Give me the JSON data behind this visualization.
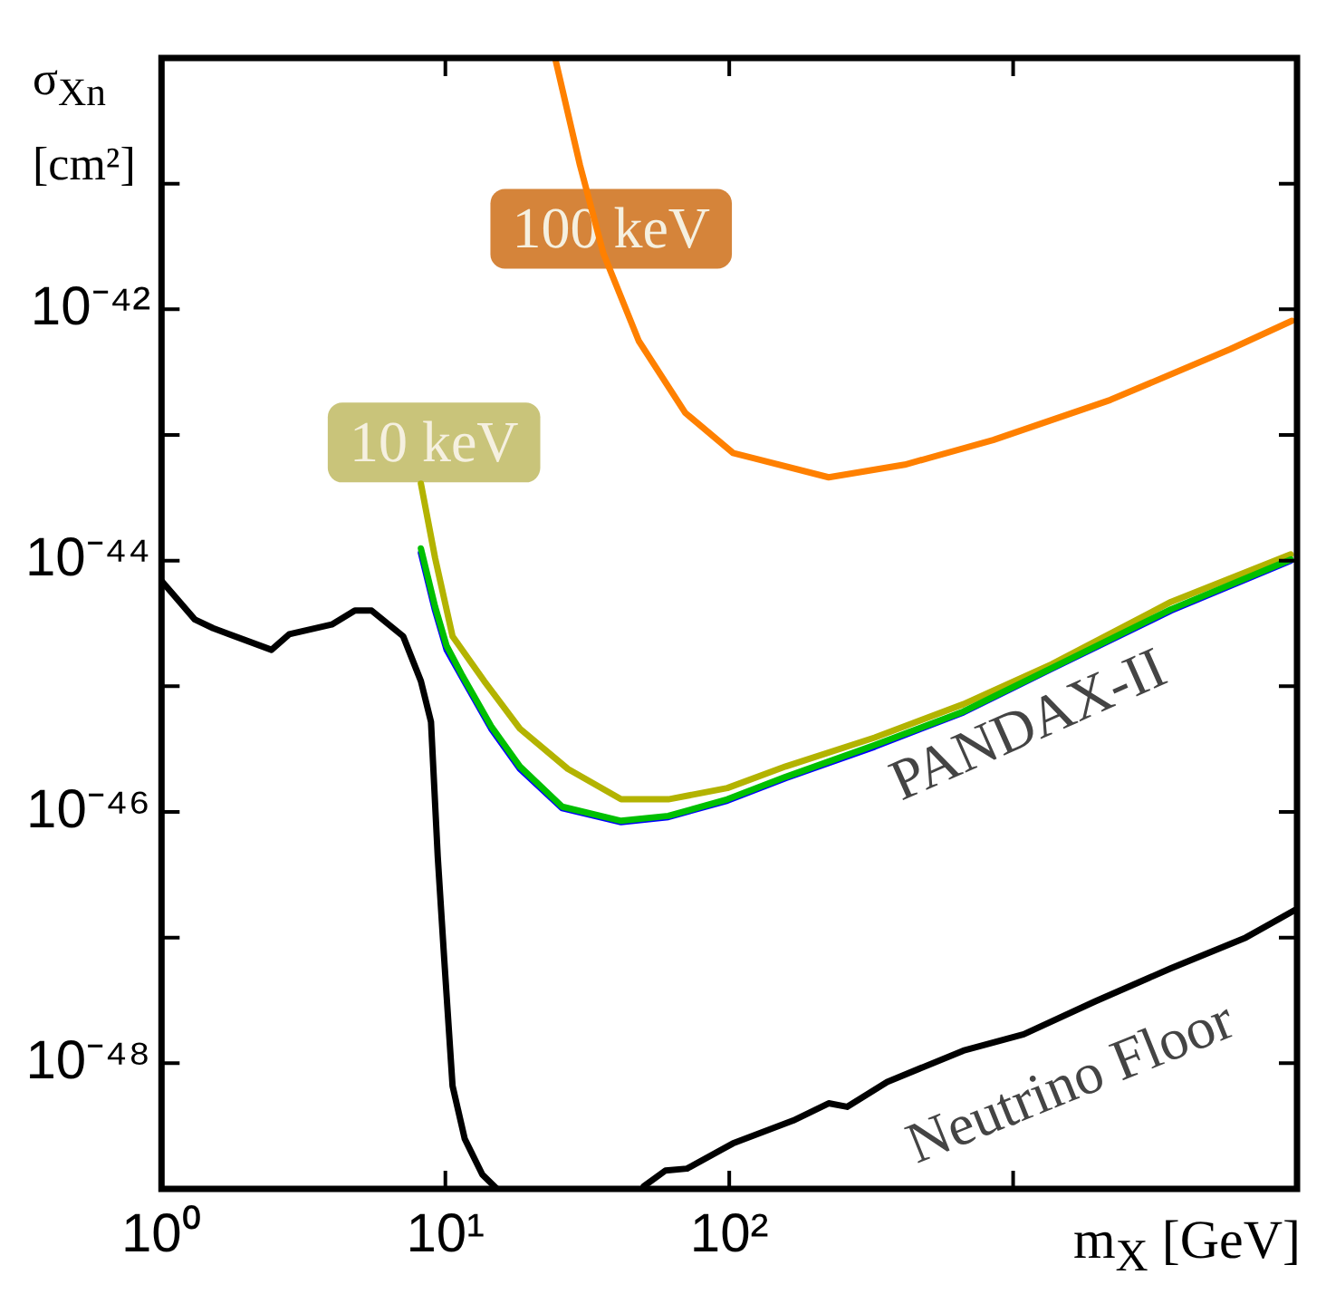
{
  "chart_data": {
    "type": "line",
    "xlabel": "m$_{X}$ [GeV]",
    "ylabel": "σ$_{Xn}$ [cm²]",
    "log": "xy",
    "xlim": [
      1,
      10000
    ],
    "ylim": [
      1e-49,
      1e-40
    ],
    "xticks": [
      {
        "value": 1,
        "label": "10⁰"
      },
      {
        "value": 10,
        "label": "10¹"
      },
      {
        "value": 100,
        "label": "10²"
      },
      {
        "value": 1000,
        "label": null
      },
      {
        "value": 10000,
        "label": null
      }
    ],
    "yticks": [
      {
        "value": 1e-49,
        "label": null
      },
      {
        "value": 1e-48,
        "label": "10⁻⁴⁸"
      },
      {
        "value": 1e-47,
        "label": null
      },
      {
        "value": 1e-46,
        "label": "10⁻⁴⁶"
      },
      {
        "value": 1e-45,
        "label": null
      },
      {
        "value": 1e-44,
        "label": "10⁻⁴⁴"
      },
      {
        "value": 1e-43,
        "label": null
      },
      {
        "value": 1e-42,
        "label": "10⁻⁴²"
      },
      {
        "value": 1e-41,
        "label": null
      },
      {
        "value": 1e-40,
        "label": null
      }
    ],
    "grid": false,
    "legend": false,
    "marker": "none",
    "line_style": "solid",
    "series": [
      {
        "color": "#000000",
        "x": [
          1,
          1.31,
          1.52,
          2.44,
          2.82,
          3.98,
          4.8,
          5.5,
          7.1,
          8.2,
          8.9,
          9.4,
          9.9,
          10.6,
          11.7,
          13.5,
          15.2
        ],
        "values": [
          6.9e-45,
          3.4e-45,
          2.9e-45,
          1.95e-45,
          2.6e-45,
          3.1e-45,
          4e-45,
          4e-45,
          2.5e-45,
          1.1e-45,
          5.2e-46,
          4.4e-47,
          6.9e-48,
          6.6e-49,
          2.5e-49,
          1.3e-49,
          1e-49
        ]
      },
      {
        "color": "#000000",
        "x": [
          50,
          59.6,
          71,
          103,
          168,
          224,
          260,
          360,
          668,
          1090,
          1940,
          3600,
          6600,
          9800
        ],
        "values": [
          1.05e-49,
          1.4e-49,
          1.45e-49,
          2.3e-49,
          3.5e-49,
          4.8e-49,
          4.5e-49,
          7.1e-49,
          1.26e-48,
          1.7e-48,
          3.1e-48,
          5.7e-48,
          1e-47,
          1.65e-47
        ]
      },
      {
        "color": "#00c000",
        "x": [
          8.2,
          9.2,
          10.1,
          11.4,
          14.5,
          18.3,
          25.8,
          41.6,
          61,
          98.5,
          158,
          325,
          668,
          1370,
          3600,
          9500
        ],
        "values": [
          1.25e-44,
          4.3e-45,
          2.1e-45,
          1.25e-45,
          4.8e-46,
          2.3e-46,
          1.1e-46,
          8.5e-47,
          9.3e-47,
          1.26e-46,
          1.9e-46,
          3.4e-46,
          6.3e-46,
          1.4e-45,
          4.1e-45,
          1.02e-44
        ]
      },
      {
        "color": "#0000ff",
        "x": [
          8.2,
          9.2,
          10.1,
          11.4,
          14.5,
          18.3,
          25.8,
          41.6,
          61,
          98.5,
          158,
          325,
          668,
          1370,
          3600,
          9500
        ],
        "values": [
          1.15e-44,
          4e-45,
          1.95e-45,
          1.2e-45,
          4.6e-46,
          2.2e-46,
          1.07e-46,
          8.3e-47,
          9.1e-47,
          1.23e-46,
          1.86e-46,
          3.3e-46,
          6.2e-46,
          1.38e-45,
          4e-45,
          1e-44
        ]
      },
      {
        "color": "#b3b300",
        "x": [
          8.2,
          9.2,
          10.6,
          13.7,
          18.3,
          27,
          41.6,
          61,
          98.5,
          158,
          325,
          668,
          1370,
          3600,
          9500
        ],
        "values": [
          4.1e-44,
          1.05e-44,
          2.5e-45,
          1.1e-45,
          4.6e-46,
          2.2e-46,
          1.26e-46,
          1.26e-46,
          1.55e-46,
          2.3e-46,
          3.9e-46,
          7.2e-46,
          1.5e-45,
          4.7e-45,
          1.12e-44
        ]
      },
      {
        "color": "#ff8000",
        "x": [
          24.4,
          29.8,
          36,
          48,
          70,
          103,
          224,
          415,
          850,
          2200,
          5800,
          9600
        ],
        "values": [
          9.8e-41,
          1.4e-41,
          2.8e-42,
          5.6e-43,
          1.5e-43,
          7.2e-44,
          4.6e-44,
          5.8e-44,
          9.1e-44,
          1.9e-43,
          4.8e-43,
          8.1e-43
        ]
      }
    ],
    "annotations": [
      "100 keV",
      "10 keV",
      "PANDAX-II",
      "Neutrino Floor"
    ]
  }
}
